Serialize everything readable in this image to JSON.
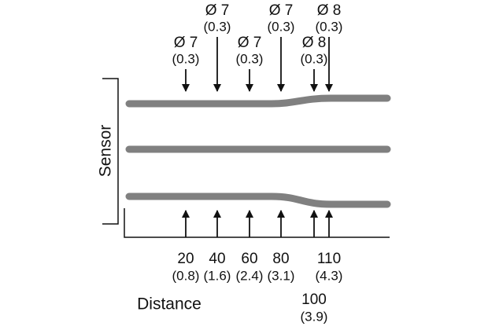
{
  "sensor_label": "Sensor",
  "distance_label": "Distance",
  "probes": [
    {
      "diameter": "Ø 7",
      "tolerance": "(0.3)",
      "distance": "20",
      "distance_in": "(0.8)"
    },
    {
      "diameter": "Ø 7",
      "tolerance": "(0.3)",
      "distance": "40",
      "distance_in": "(1.6)"
    },
    {
      "diameter": "Ø 7",
      "tolerance": "(0.3)",
      "distance": "60",
      "distance_in": "(2.4)"
    },
    {
      "diameter": "Ø 7",
      "tolerance": "(0.3)",
      "distance": "80",
      "distance_in": "(3.1)"
    },
    {
      "diameter": "Ø 8",
      "tolerance": "(0.3)",
      "distance": "100",
      "distance_in": "(3.9)"
    },
    {
      "diameter": "Ø 8",
      "tolerance": "(0.3)",
      "distance": "110",
      "distance_in": "(4.3)"
    }
  ]
}
